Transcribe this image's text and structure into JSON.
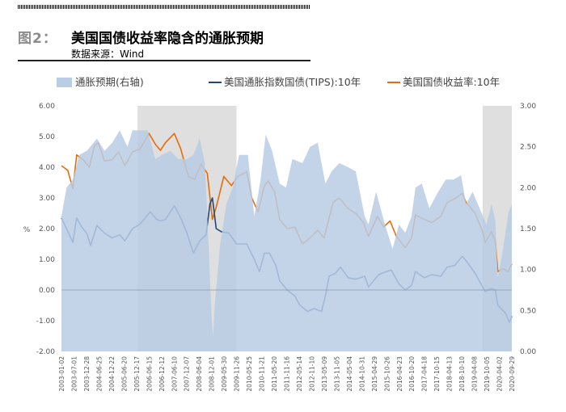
{
  "header": {
    "figure_label": "图2：",
    "title": "美国国债收益率隐含的通胀预期",
    "source": "数据来源：Wind"
  },
  "chart_data": {
    "type": "line",
    "legend": {
      "items": [
        {
          "name": "通胀预期(右轴)",
          "style": "area",
          "color": "#b9cde5"
        },
        {
          "name": "美国通胀指数国债(TIPS):10年",
          "style": "line",
          "color": "#1f497d"
        },
        {
          "name": "美国国债收益率:10年",
          "style": "line",
          "color": "#e46c0a"
        }
      ]
    },
    "y_left": {
      "label": "%",
      "min": -2.0,
      "max": 6.0,
      "ticks": [
        "-2.00",
        "-1.00",
        "0.00",
        "1.00",
        "2.00",
        "3.00",
        "4.00",
        "5.00",
        "6.00"
      ]
    },
    "y_right": {
      "min": 0.0,
      "max": 3.0,
      "ticks": [
        "0.00",
        "0.50",
        "1.00",
        "1.50",
        "2.00",
        "2.50",
        "3.00"
      ]
    },
    "x_range": [
      2003.0,
      2020.75
    ],
    "x_ticks": [
      "2003-01-02",
      "2003-07-01",
      "2003-12-28",
      "2004-06-25",
      "2004-12-22",
      "2005-06-20",
      "2005-12-17",
      "2006-06-15",
      "2006-12-12",
      "2007-06-10",
      "2007-12-07",
      "2008-06-04",
      "2008-12-01",
      "2009-05-30",
      "2009-11-26",
      "2010-05-25",
      "2010-11-21",
      "2011-05-20",
      "2011-11-16",
      "2012-05-14",
      "2012-11-10",
      "2013-05-09",
      "2013-11-05",
      "2014-05-04",
      "2014-10-31",
      "2015-04-29",
      "2015-10-26",
      "2016-04-23",
      "2016-10-20",
      "2017-04-18",
      "2017-10-15",
      "2018-04-13",
      "2018-10-10",
      "2019-04-08",
      "2019-10-05",
      "2020-04-02",
      "2020-09-29"
    ],
    "shaded_periods": [
      [
        2006.0,
        2009.9
      ],
      [
        2019.6,
        2020.75
      ]
    ],
    "series": [
      {
        "name": "美国国债收益率:10年",
        "axis": "left",
        "color": "#e46c0a",
        "points": [
          [
            2003.0,
            4.05
          ],
          [
            2003.25,
            3.9
          ],
          [
            2003.45,
            3.3
          ],
          [
            2003.6,
            4.4
          ],
          [
            2003.85,
            4.25
          ],
          [
            2004.1,
            4.0
          ],
          [
            2004.3,
            4.7
          ],
          [
            2004.45,
            4.8
          ],
          [
            2004.7,
            4.2
          ],
          [
            2005.0,
            4.25
          ],
          [
            2005.25,
            4.5
          ],
          [
            2005.5,
            4.05
          ],
          [
            2005.8,
            4.5
          ],
          [
            2006.1,
            4.6
          ],
          [
            2006.45,
            5.1
          ],
          [
            2006.7,
            4.75
          ],
          [
            2006.9,
            4.55
          ],
          [
            2007.1,
            4.8
          ],
          [
            2007.45,
            5.1
          ],
          [
            2007.7,
            4.6
          ],
          [
            2008.0,
            3.7
          ],
          [
            2008.25,
            3.6
          ],
          [
            2008.5,
            4.1
          ],
          [
            2008.75,
            3.8
          ],
          [
            2008.95,
            2.3
          ],
          [
            2009.1,
            2.7
          ],
          [
            2009.4,
            3.7
          ],
          [
            2009.7,
            3.4
          ],
          [
            2009.95,
            3.7
          ],
          [
            2010.3,
            3.85
          ],
          [
            2010.5,
            3.0
          ],
          [
            2010.75,
            2.55
          ],
          [
            2011.0,
            3.4
          ],
          [
            2011.15,
            3.55
          ],
          [
            2011.4,
            3.2
          ],
          [
            2011.6,
            2.3
          ],
          [
            2011.9,
            2.0
          ],
          [
            2012.2,
            2.05
          ],
          [
            2012.5,
            1.5
          ],
          [
            2012.8,
            1.7
          ],
          [
            2013.1,
            1.95
          ],
          [
            2013.35,
            1.7
          ],
          [
            2013.7,
            2.85
          ],
          [
            2013.95,
            3.0
          ],
          [
            2014.3,
            2.65
          ],
          [
            2014.6,
            2.5
          ],
          [
            2014.9,
            2.2
          ],
          [
            2015.1,
            1.75
          ],
          [
            2015.45,
            2.4
          ],
          [
            2015.7,
            2.05
          ],
          [
            2015.95,
            2.25
          ],
          [
            2016.2,
            1.75
          ],
          [
            2016.55,
            1.38
          ],
          [
            2016.8,
            1.7
          ],
          [
            2016.95,
            2.45
          ],
          [
            2017.3,
            2.3
          ],
          [
            2017.6,
            2.2
          ],
          [
            2017.95,
            2.4
          ],
          [
            2018.2,
            2.85
          ],
          [
            2018.45,
            2.95
          ],
          [
            2018.8,
            3.15
          ],
          [
            2018.95,
            2.85
          ],
          [
            2019.3,
            2.5
          ],
          [
            2019.6,
            1.9
          ],
          [
            2019.7,
            1.55
          ],
          [
            2019.95,
            1.9
          ],
          [
            2020.1,
            1.6
          ],
          [
            2020.2,
            0.6
          ],
          [
            2020.4,
            0.7
          ],
          [
            2020.6,
            0.6
          ],
          [
            2020.75,
            0.85
          ]
        ]
      },
      {
        "name": "美国通胀指数国债(TIPS):10年",
        "axis": "left",
        "color": "#1f497d",
        "points": [
          [
            2003.0,
            2.35
          ],
          [
            2003.2,
            2.0
          ],
          [
            2003.45,
            1.55
          ],
          [
            2003.6,
            2.35
          ],
          [
            2003.8,
            2.05
          ],
          [
            2004.0,
            1.85
          ],
          [
            2004.15,
            1.45
          ],
          [
            2004.4,
            2.1
          ],
          [
            2004.7,
            1.85
          ],
          [
            2005.0,
            1.7
          ],
          [
            2005.3,
            1.8
          ],
          [
            2005.5,
            1.6
          ],
          [
            2005.8,
            2.0
          ],
          [
            2006.1,
            2.15
          ],
          [
            2006.5,
            2.55
          ],
          [
            2006.75,
            2.3
          ],
          [
            2006.9,
            2.25
          ],
          [
            2007.1,
            2.3
          ],
          [
            2007.45,
            2.75
          ],
          [
            2007.7,
            2.35
          ],
          [
            2007.95,
            1.85
          ],
          [
            2008.2,
            1.2
          ],
          [
            2008.45,
            1.6
          ],
          [
            2008.7,
            1.8
          ],
          [
            2008.85,
            2.8
          ],
          [
            2008.95,
            3.0
          ],
          [
            2009.1,
            2.0
          ],
          [
            2009.3,
            1.9
          ],
          [
            2009.6,
            1.85
          ],
          [
            2009.9,
            1.5
          ],
          [
            2010.3,
            1.5
          ],
          [
            2010.6,
            1.0
          ],
          [
            2010.8,
            0.6
          ],
          [
            2011.0,
            1.2
          ],
          [
            2011.2,
            1.2
          ],
          [
            2011.45,
            0.8
          ],
          [
            2011.6,
            0.3
          ],
          [
            2011.9,
            0.0
          ],
          [
            2012.2,
            -0.2
          ],
          [
            2012.4,
            -0.5
          ],
          [
            2012.7,
            -0.7
          ],
          [
            2012.95,
            -0.6
          ],
          [
            2013.25,
            -0.7
          ],
          [
            2013.4,
            -0.2
          ],
          [
            2013.55,
            0.45
          ],
          [
            2013.8,
            0.55
          ],
          [
            2014.0,
            0.75
          ],
          [
            2014.3,
            0.4
          ],
          [
            2014.6,
            0.35
          ],
          [
            2014.95,
            0.45
          ],
          [
            2015.1,
            0.1
          ],
          [
            2015.5,
            0.5
          ],
          [
            2015.8,
            0.6
          ],
          [
            2016.0,
            0.65
          ],
          [
            2016.3,
            0.2
          ],
          [
            2016.55,
            0.0
          ],
          [
            2016.8,
            0.15
          ],
          [
            2016.95,
            0.6
          ],
          [
            2017.3,
            0.4
          ],
          [
            2017.6,
            0.5
          ],
          [
            2017.95,
            0.45
          ],
          [
            2018.2,
            0.75
          ],
          [
            2018.5,
            0.8
          ],
          [
            2018.8,
            1.1
          ],
          [
            2018.95,
            0.95
          ],
          [
            2019.3,
            0.55
          ],
          [
            2019.6,
            0.1
          ],
          [
            2019.7,
            -0.05
          ],
          [
            2019.95,
            0.05
          ],
          [
            2020.1,
            0.0
          ],
          [
            2020.2,
            -0.5
          ],
          [
            2020.5,
            -0.75
          ],
          [
            2020.65,
            -1.05
          ],
          [
            2020.75,
            -0.85
          ]
        ]
      },
      {
        "name": "通胀预期(右轴)",
        "axis": "right",
        "style": "area",
        "color": "#b9cde5",
        "points": [
          [
            2003.0,
            1.65
          ],
          [
            2003.2,
            2.0
          ],
          [
            2003.45,
            2.1
          ],
          [
            2003.7,
            2.4
          ],
          [
            2004.0,
            2.45
          ],
          [
            2004.4,
            2.6
          ],
          [
            2004.7,
            2.45
          ],
          [
            2005.0,
            2.55
          ],
          [
            2005.3,
            2.7
          ],
          [
            2005.6,
            2.5
          ],
          [
            2005.8,
            2.7
          ],
          [
            2006.1,
            2.7
          ],
          [
            2006.4,
            2.7
          ],
          [
            2006.7,
            2.35
          ],
          [
            2006.95,
            2.4
          ],
          [
            2007.3,
            2.45
          ],
          [
            2007.6,
            2.35
          ],
          [
            2007.95,
            2.35
          ],
          [
            2008.2,
            2.4
          ],
          [
            2008.45,
            2.6
          ],
          [
            2008.65,
            2.3
          ],
          [
            2008.8,
            1.3
          ],
          [
            2008.9,
            0.55
          ],
          [
            2008.97,
            0.18
          ],
          [
            2009.05,
            0.6
          ],
          [
            2009.25,
            1.3
          ],
          [
            2009.5,
            1.8
          ],
          [
            2009.75,
            2.0
          ],
          [
            2010.0,
            2.4
          ],
          [
            2010.35,
            2.4
          ],
          [
            2010.6,
            1.65
          ],
          [
            2010.85,
            2.1
          ],
          [
            2011.05,
            2.65
          ],
          [
            2011.3,
            2.45
          ],
          [
            2011.6,
            2.05
          ],
          [
            2011.85,
            2.0
          ],
          [
            2012.1,
            2.35
          ],
          [
            2012.5,
            2.3
          ],
          [
            2012.8,
            2.5
          ],
          [
            2013.1,
            2.55
          ],
          [
            2013.4,
            2.05
          ],
          [
            2013.65,
            2.2
          ],
          [
            2013.95,
            2.3
          ],
          [
            2014.3,
            2.25
          ],
          [
            2014.6,
            2.2
          ],
          [
            2014.95,
            1.65
          ],
          [
            2015.1,
            1.55
          ],
          [
            2015.4,
            1.95
          ],
          [
            2015.75,
            1.55
          ],
          [
            2016.05,
            1.25
          ],
          [
            2016.3,
            1.55
          ],
          [
            2016.55,
            1.45
          ],
          [
            2016.8,
            1.65
          ],
          [
            2016.95,
            2.0
          ],
          [
            2017.2,
            2.05
          ],
          [
            2017.5,
            1.75
          ],
          [
            2017.85,
            1.95
          ],
          [
            2018.15,
            2.1
          ],
          [
            2018.45,
            2.1
          ],
          [
            2018.75,
            2.15
          ],
          [
            2018.95,
            1.8
          ],
          [
            2019.2,
            1.95
          ],
          [
            2019.55,
            1.7
          ],
          [
            2019.75,
            1.55
          ],
          [
            2019.95,
            1.8
          ],
          [
            2020.1,
            1.6
          ],
          [
            2020.2,
            0.9
          ],
          [
            2020.35,
            1.15
          ],
          [
            2020.5,
            1.45
          ],
          [
            2020.62,
            1.7
          ],
          [
            2020.75,
            1.8
          ]
        ]
      }
    ]
  }
}
